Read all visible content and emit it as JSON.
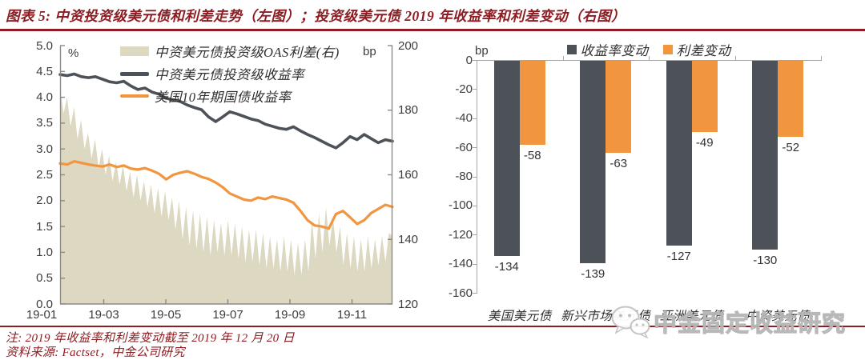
{
  "title": "图表 5: 中资投资级美元债和利差走势（左图）；投资级美元债 2019 年收益率和利差变动（右图）",
  "notes": {
    "note": "注: 2019 年收益率和利差变动截至 2019 年 12 月 20 日",
    "source": "资料来源: Factset，中金公司研究"
  },
  "watermark": {
    "icon": "wechat-icon",
    "text": "中金固定收益研究"
  },
  "colors": {
    "accent_red": "#8e1c22",
    "dark": "#4d5158",
    "orange": "#f2953f",
    "beige": "#dcd8c2",
    "axis_gray": "#a6a6a6"
  },
  "chart_data": [
    {
      "type": "line",
      "title": "中资投资级美元债和利差走势",
      "left_axis": {
        "unit": "%",
        "range": [
          0,
          5
        ],
        "ticks": [
          "5.0",
          "4.5",
          "4.0",
          "3.5",
          "3.0",
          "2.5",
          "2.0",
          "1.5",
          "1.0",
          "0.5",
          "0.0"
        ]
      },
      "right_axis": {
        "unit": "bp",
        "range": [
          120,
          200
        ],
        "ticks": [
          "200",
          "180",
          "160",
          "140",
          "120"
        ]
      },
      "x_ticks": [
        "19-01",
        "19-03",
        "19-05",
        "19-07",
        "19-09",
        "19-11"
      ],
      "grid": false,
      "legend_position": "top-inside",
      "series": [
        {
          "name": "中资美元债投资级OAS利差(右)",
          "type": "area",
          "axis": "right",
          "color": "#dcd8c2",
          "values": [
            187,
            179,
            184,
            175,
            181,
            171,
            177,
            168,
            173,
            165,
            171,
            162,
            168,
            160,
            166,
            158,
            164,
            157,
            163,
            155,
            161,
            153,
            160,
            152,
            158,
            150,
            157,
            148,
            156,
            147,
            155,
            146,
            153,
            143,
            152,
            140,
            150,
            138,
            149,
            137,
            148,
            136,
            147,
            135,
            146,
            136,
            145,
            135,
            146,
            135,
            145,
            134,
            144,
            133,
            143,
            133,
            143,
            132,
            142,
            131,
            141,
            131,
            140,
            130,
            141,
            130,
            140,
            129,
            139,
            129,
            140,
            130,
            146,
            134,
            148,
            136,
            150,
            138,
            147,
            136,
            144,
            132,
            142,
            131,
            141,
            130,
            140,
            130,
            141,
            131,
            140,
            132,
            141,
            133,
            142,
            141
          ]
        },
        {
          "name": "中资美元债投资级收益率",
          "type": "line",
          "axis": "left",
          "color": "#4d5158",
          "values": [
            4.44,
            4.42,
            4.45,
            4.4,
            4.38,
            4.4,
            4.35,
            4.3,
            4.28,
            4.31,
            4.22,
            4.15,
            4.18,
            4.1,
            4.06,
            3.98,
            3.95,
            3.92,
            3.85,
            3.8,
            3.76,
            3.62,
            3.53,
            3.62,
            3.72,
            3.68,
            3.63,
            3.58,
            3.55,
            3.48,
            3.44,
            3.4,
            3.38,
            3.43,
            3.35,
            3.28,
            3.22,
            3.15,
            3.08,
            3.02,
            3.12,
            3.24,
            3.18,
            3.28,
            3.2,
            3.12,
            3.18,
            3.15
          ]
        },
        {
          "name": "美国10年期国债收益率",
          "type": "line",
          "axis": "left",
          "color": "#f2953f",
          "values": [
            2.72,
            2.7,
            2.76,
            2.73,
            2.7,
            2.68,
            2.66,
            2.7,
            2.65,
            2.68,
            2.62,
            2.6,
            2.63,
            2.58,
            2.52,
            2.41,
            2.5,
            2.54,
            2.57,
            2.52,
            2.46,
            2.42,
            2.35,
            2.26,
            2.14,
            2.08,
            2.02,
            2.0,
            2.06,
            2.03,
            2.08,
            2.05,
            2.02,
            1.96,
            1.8,
            1.62,
            1.52,
            1.5,
            1.46,
            1.74,
            1.8,
            1.68,
            1.55,
            1.62,
            1.76,
            1.84,
            1.92,
            1.88
          ]
        }
      ]
    },
    {
      "type": "bar",
      "title": "投资级美元债2019年收益率和利差变动",
      "categories": [
        "美国美元债",
        "新兴市场美元债",
        "亚洲美元债",
        "中资美元债"
      ],
      "series": [
        {
          "name": "收益率变动",
          "color": "#4d5158",
          "values": [
            -134,
            -139,
            -127,
            -130
          ]
        },
        {
          "name": "利差变动",
          "color": "#f2953f",
          "values": [
            -58,
            -63,
            -49,
            -52
          ]
        }
      ],
      "ylabel": "bp",
      "ylim": [
        -160,
        0
      ],
      "yticks": [
        0,
        -20,
        -40,
        -60,
        -80,
        -100,
        -120,
        -140,
        -160
      ],
      "grid": false,
      "legend_position": "top-center"
    }
  ]
}
